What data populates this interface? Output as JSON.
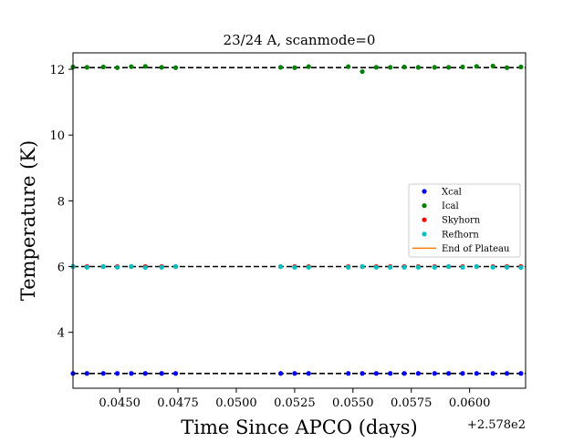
{
  "chart_data": {
    "type": "scatter",
    "title": "23/24 A, scanmode=0",
    "xlabel": "Time Since APCO (days)",
    "ylabel": "Temperature (K)",
    "x_offset_label": "+2.578e2",
    "xlim": [
      257.843,
      257.8624
    ],
    "ylim": [
      2.3,
      12.5
    ],
    "x_ticks": [
      257.845,
      257.8475,
      257.85,
      257.8525,
      257.855,
      257.8575,
      257.86
    ],
    "x_tick_labels": [
      "0.0450",
      "0.0475",
      "0.0500",
      "0.0525",
      "0.0550",
      "0.0575",
      "0.0600"
    ],
    "y_ticks": [
      4,
      6,
      8,
      10,
      12
    ],
    "y_tick_labels": [
      "4",
      "6",
      "8",
      "10",
      "12"
    ],
    "legend_position": "center-right",
    "grid": false,
    "x": [
      257.843,
      257.8436,
      257.8443,
      257.8449,
      257.8455,
      257.8461,
      257.8468,
      257.8474,
      257.8519,
      257.8525,
      257.8531,
      257.8548,
      257.8554,
      257.856,
      257.8566,
      257.8572,
      257.8578,
      257.8585,
      257.8591,
      257.8597,
      257.8603,
      257.861,
      257.8616,
      257.8622
    ],
    "series": [
      {
        "name": "Xcal",
        "color": "#0000ff",
        "values": [
          2.75,
          2.75,
          2.75,
          2.75,
          2.75,
          2.75,
          2.75,
          2.75,
          2.75,
          2.75,
          2.75,
          2.75,
          2.75,
          2.75,
          2.75,
          2.75,
          2.75,
          2.75,
          2.75,
          2.75,
          2.75,
          2.75,
          2.75,
          2.75
        ]
      },
      {
        "name": "Ical",
        "color": "#008000",
        "values": [
          12.07,
          12.06,
          12.07,
          12.05,
          12.08,
          12.09,
          12.06,
          12.05,
          12.06,
          12.05,
          12.08,
          12.08,
          11.93,
          12.06,
          12.06,
          12.07,
          12.06,
          12.06,
          12.06,
          12.07,
          12.09,
          12.1,
          12.05,
          12.07
        ]
      },
      {
        "name": "Skyhorn",
        "color": "#ff0000",
        "values": [
          6.0,
          6.0,
          6.0,
          6.0,
          6.0,
          6.0,
          6.0,
          6.0,
          6.0,
          6.0,
          6.0,
          6.0,
          6.0,
          6.0,
          6.0,
          6.0,
          6.0,
          6.0,
          6.0,
          6.0,
          6.0,
          6.0,
          6.0,
          6.0
        ]
      },
      {
        "name": "Refhorn",
        "color": "#00bfbf",
        "values": [
          6.0,
          5.98,
          6.0,
          5.98,
          6.0,
          5.97,
          5.98,
          6.0,
          6.0,
          5.98,
          5.98,
          5.98,
          6.0,
          5.98,
          5.98,
          5.98,
          5.98,
          5.98,
          6.0,
          5.98,
          6.0,
          5.98,
          5.98,
          5.97
        ]
      }
    ],
    "reference_lines": [
      {
        "y": 12.05,
        "style": "dashed",
        "color": "#000000"
      },
      {
        "y": 6.0,
        "style": "dashed",
        "color": "#000000"
      },
      {
        "y": 2.75,
        "style": "dashed",
        "color": "#000000"
      }
    ],
    "legend": [
      {
        "label": "Xcal",
        "marker": "dot",
        "color": "#0000ff"
      },
      {
        "label": "Ical",
        "marker": "dot",
        "color": "#008000"
      },
      {
        "label": "Skyhorn",
        "marker": "dot",
        "color": "#ff0000"
      },
      {
        "label": "Refhorn",
        "marker": "dot",
        "color": "#00bfbf"
      },
      {
        "label": "End of Plateau",
        "marker": "line",
        "color": "#ff7f0e"
      }
    ]
  }
}
